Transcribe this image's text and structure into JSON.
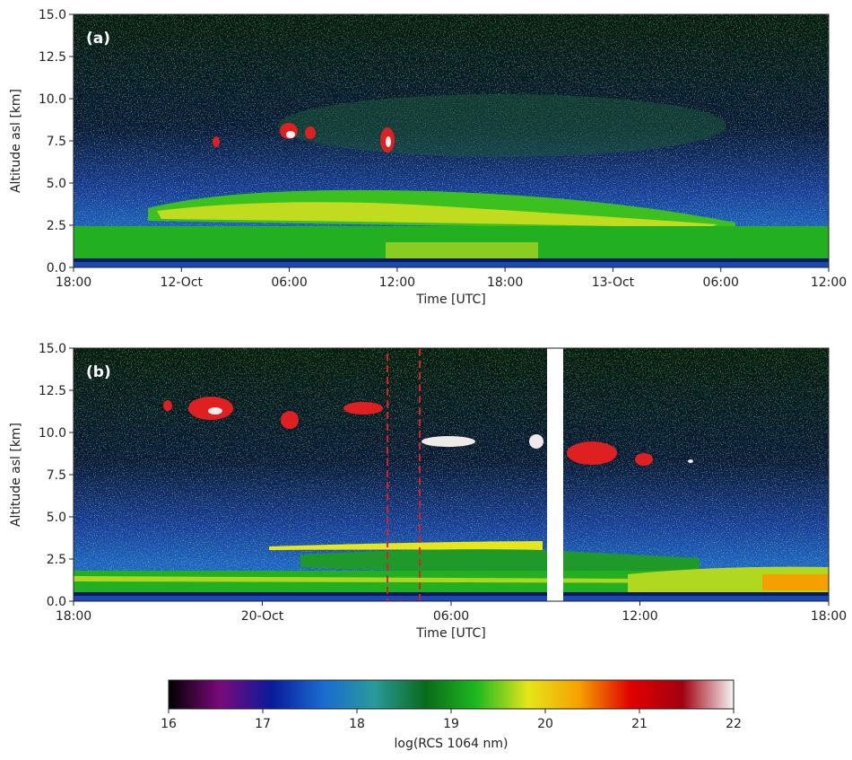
{
  "chart_data": [
    {
      "type": "heatmap",
      "panel_label": "(a)",
      "xlabel": "Time [UTC]",
      "ylabel": "Altitude asl [km]",
      "xlim": [
        0,
        42
      ],
      "xticks": [
        {
          "value": 0,
          "label": "18:00"
        },
        {
          "value": 6,
          "label": "12-Oct"
        },
        {
          "value": 12,
          "label": "06:00"
        },
        {
          "value": 18,
          "label": "12:00"
        },
        {
          "value": 24,
          "label": "18:00"
        },
        {
          "value": 30,
          "label": "13-Oct"
        },
        {
          "value": 36,
          "label": "06:00"
        },
        {
          "value": 42,
          "label": "12:00"
        }
      ],
      "ylim": [
        0,
        15
      ],
      "yticks": [
        {
          "value": 0,
          "label": "0.0"
        },
        2.5,
        {
          "value": 5,
          "label": "5.0"
        },
        7.5,
        {
          "value": 10,
          "label": "10.0"
        },
        12.5,
        {
          "value": 15,
          "label": "15.0"
        }
      ]
    },
    {
      "type": "heatmap",
      "panel_label": "(b)",
      "xlabel": "Time [UTC]",
      "ylabel": "Altitude asl [km]",
      "xlim": [
        0,
        24
      ],
      "xticks": [
        {
          "value": 0,
          "label": "18:00"
        },
        {
          "value": 6,
          "label": "20-Oct"
        },
        {
          "value": 12,
          "label": "06:00"
        },
        {
          "value": 18,
          "label": "12:00"
        },
        {
          "value": 24,
          "label": "18:00"
        }
      ],
      "ylim": [
        0,
        15
      ],
      "yticks": [
        {
          "value": 0,
          "label": "0.0"
        },
        2.5,
        {
          "value": 5,
          "label": "5.0"
        },
        7.5,
        {
          "value": 10,
          "label": "10.0"
        },
        12.5,
        {
          "value": 15,
          "label": "15.0"
        }
      ]
    }
  ],
  "colorbar": {
    "label": "log(RCS 1064 nm)",
    "lim": [
      16,
      22
    ],
    "ticks": [
      16,
      17,
      18,
      19,
      20,
      21,
      22
    ],
    "colors": [
      "#000000",
      "#7a0a7a",
      "#0a1a9a",
      "#1a6ad0",
      "#2a9a9a",
      "#0a6a1a",
      "#1fb81f",
      "#e6e61a",
      "#f5a000",
      "#e00000",
      "#a00010",
      "#f5f5f5"
    ]
  }
}
